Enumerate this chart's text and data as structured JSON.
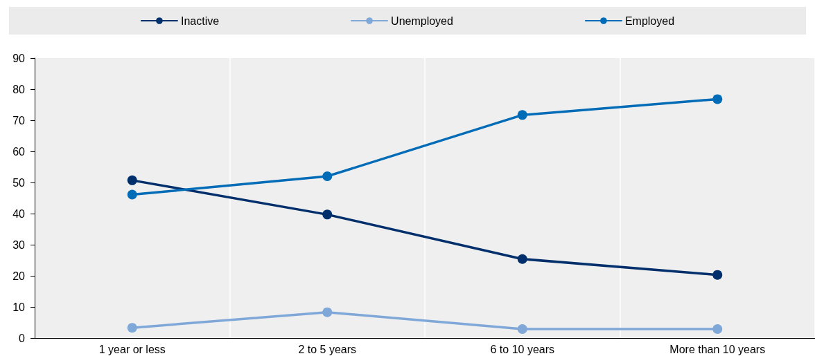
{
  "chart_data": {
    "type": "line",
    "categories": [
      "1 year or less",
      "2 to 5 years",
      "6 to 10 years",
      "More than 10 years"
    ],
    "series": [
      {
        "name": "Inactive",
        "color": "#002f6c",
        "values": [
          50.7,
          39.7,
          25.4,
          20.3
        ]
      },
      {
        "name": "Unemployed",
        "color": "#7fa8d9",
        "values": [
          3.3,
          8.3,
          2.9,
          2.9
        ]
      },
      {
        "name": "Employed",
        "color": "#006bb6",
        "values": [
          46.1,
          52.0,
          71.7,
          76.8
        ]
      }
    ],
    "ylim": [
      0,
      90
    ],
    "yticks": [
      0,
      10,
      20,
      30,
      40,
      50,
      60,
      70,
      80,
      90
    ],
    "grid": "x",
    "legend": "top",
    "marker": "circle",
    "line_style": "solid"
  }
}
